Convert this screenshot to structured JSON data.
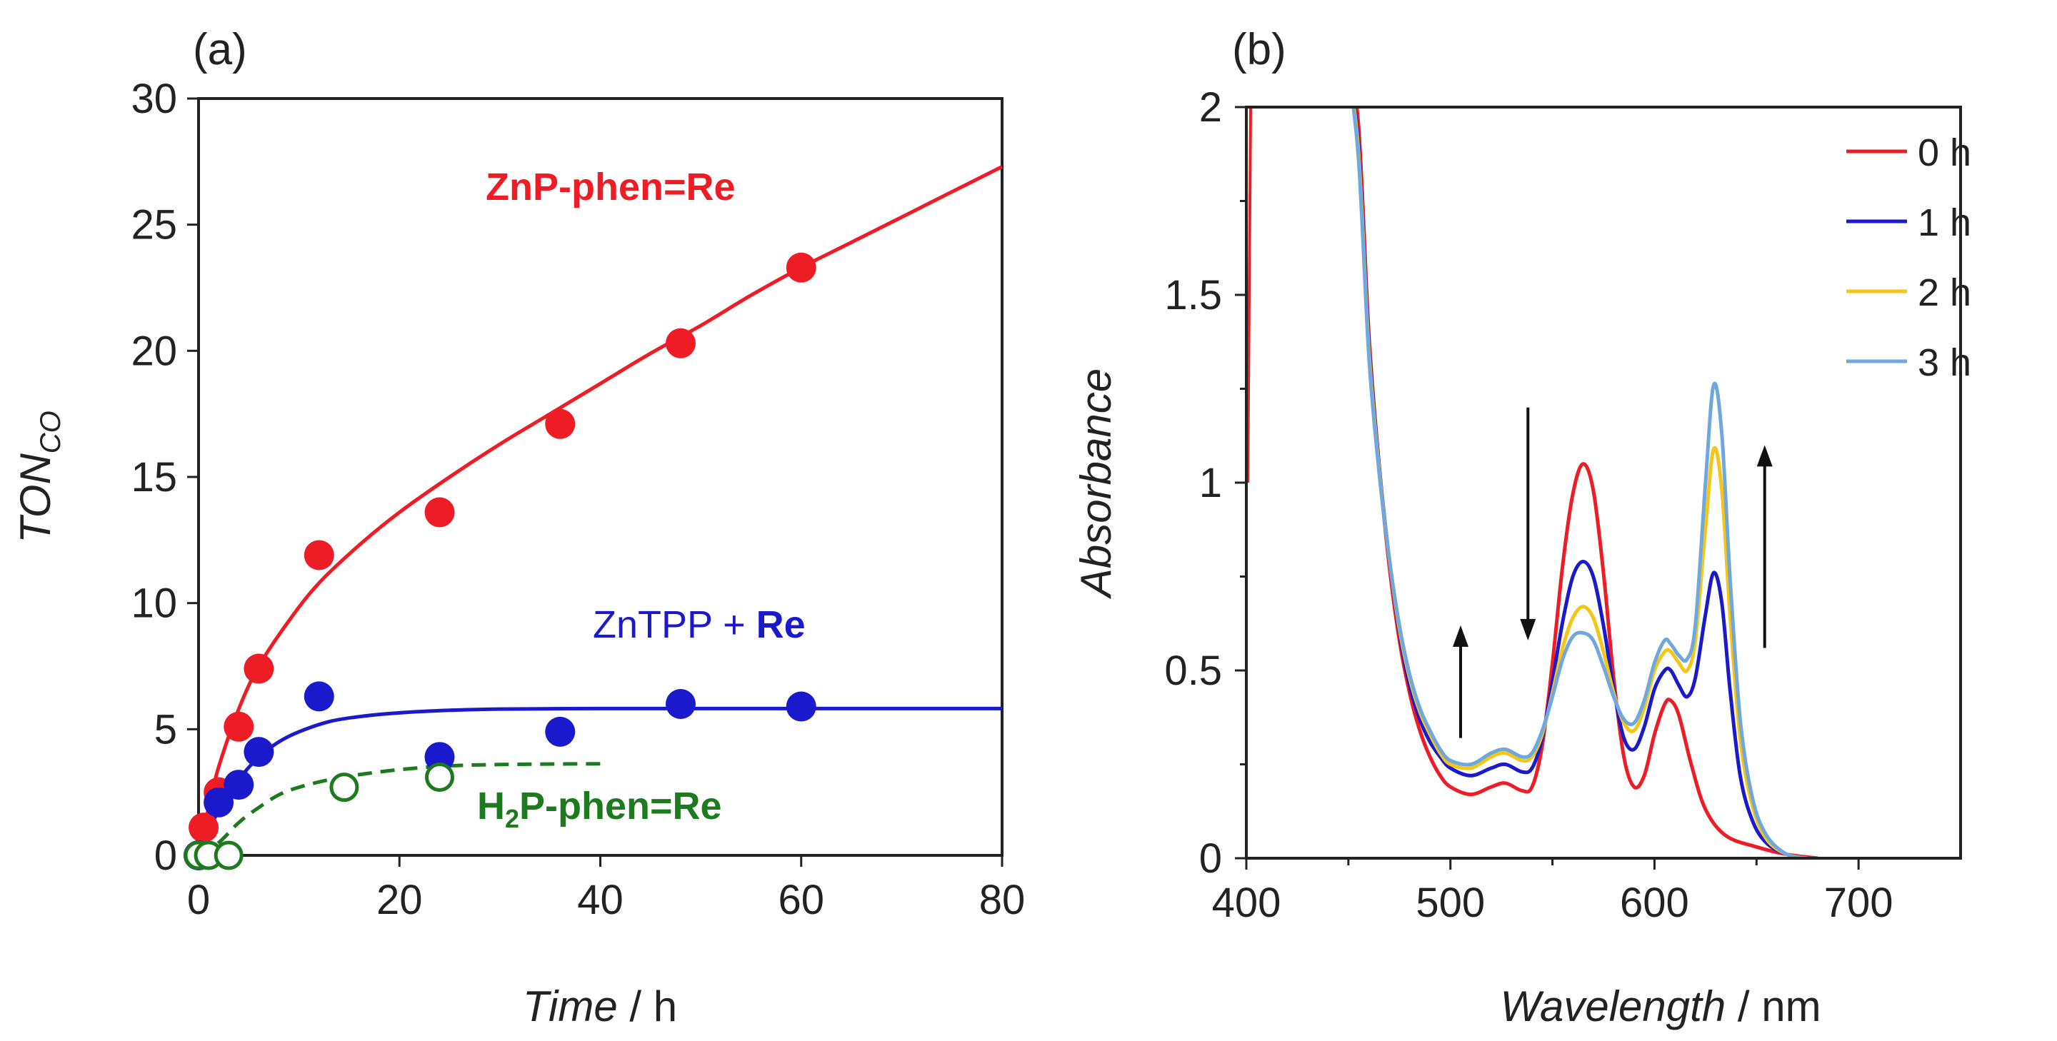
{
  "chart_data": [
    {
      "panel": "(a)",
      "type": "scatter",
      "xlabel": "Time",
      "xunit": " / h",
      "ylabel": "TON",
      "ylabel_sub": "CO",
      "xlim": [
        0,
        80
      ],
      "ylim": [
        0,
        30
      ],
      "xticks": [
        0,
        20,
        40,
        60,
        80
      ],
      "yticks": [
        0,
        5,
        10,
        15,
        20,
        25,
        30
      ],
      "series": [
        {
          "name": "ZnP-phen=Re",
          "name_parts": [
            "ZnP-phen=Re"
          ],
          "color": "#ee1c25",
          "marker": "filled-circle",
          "fit": "solid",
          "points": [
            [
              0,
              0
            ],
            [
              0.5,
              1.1
            ],
            [
              2,
              2.5
            ],
            [
              4,
              5.1
            ],
            [
              6,
              7.4
            ],
            [
              12,
              11.9
            ],
            [
              24,
              13.6
            ],
            [
              36,
              17.1
            ],
            [
              48,
              20.3
            ],
            [
              60,
              23.3
            ]
          ],
          "fit_curve": [
            [
              0,
              0
            ],
            [
              1,
              1.9
            ],
            [
              2,
              3.5
            ],
            [
              4,
              5.8
            ],
            [
              6,
              7.5
            ],
            [
              9,
              9.3
            ],
            [
              12,
              10.8
            ],
            [
              16,
              12.3
            ],
            [
              20,
              13.6
            ],
            [
              25,
              15.0
            ],
            [
              30,
              16.3
            ],
            [
              35,
              17.5
            ],
            [
              40,
              18.7
            ],
            [
              45,
              19.9
            ],
            [
              50,
              21.0
            ],
            [
              55,
              22.2
            ],
            [
              60,
              23.3
            ],
            [
              65,
              24.3
            ],
            [
              70,
              25.3
            ],
            [
              75,
              26.3
            ],
            [
              80,
              27.3
            ]
          ]
        },
        {
          "name": "ZnTPP + Re",
          "name_parts": [
            "ZnTPP + ",
            "Re"
          ],
          "color": "#1a1acc",
          "marker": "filled-circle",
          "fit": "solid",
          "points": [
            [
              0,
              0
            ],
            [
              2,
              2.1
            ],
            [
              4,
              2.8
            ],
            [
              6,
              4.1
            ],
            [
              12,
              6.3
            ],
            [
              24,
              3.9
            ],
            [
              36,
              4.9
            ],
            [
              48,
              6.0
            ],
            [
              60,
              5.9
            ]
          ],
          "fit_curve": [
            [
              0,
              0
            ],
            [
              2,
              1.8
            ],
            [
              4,
              3.0
            ],
            [
              6,
              3.9
            ],
            [
              8,
              4.5
            ],
            [
              10,
              4.9
            ],
            [
              13,
              5.3
            ],
            [
              16,
              5.5
            ],
            [
              20,
              5.65
            ],
            [
              25,
              5.75
            ],
            [
              30,
              5.8
            ],
            [
              40,
              5.82
            ],
            [
              50,
              5.82
            ],
            [
              60,
              5.82
            ],
            [
              70,
              5.82
            ],
            [
              80,
              5.82
            ]
          ]
        },
        {
          "name": "H2P-phen=Re",
          "name_parts": [
            "H",
            "2",
            "P-phen=Re"
          ],
          "color": "#1e7a1e",
          "marker": "open-circle",
          "fit": "dashed",
          "points": [
            [
              0,
              0
            ],
            [
              1,
              0
            ],
            [
              3,
              0
            ],
            [
              14.5,
              2.7
            ],
            [
              24,
              3.1
            ]
          ],
          "fit_curve": [
            [
              0,
              0
            ],
            [
              2,
              0.5
            ],
            [
              4,
              1.3
            ],
            [
              6,
              1.9
            ],
            [
              8,
              2.4
            ],
            [
              10,
              2.7
            ],
            [
              13,
              3.0
            ],
            [
              16,
              3.2
            ],
            [
              20,
              3.4
            ],
            [
              25,
              3.55
            ],
            [
              30,
              3.6
            ],
            [
              35,
              3.62
            ],
            [
              40,
              3.63
            ]
          ]
        }
      ]
    },
    {
      "panel": "(b)",
      "type": "line",
      "xlabel": "Wavelength",
      "xunit": " / nm",
      "ylabel": "Absorbance",
      "xlim": [
        400,
        750
      ],
      "ylim": [
        0,
        2
      ],
      "xticks": [
        400,
        500,
        600,
        700
      ],
      "xticks_minor": [
        450,
        550,
        650
      ],
      "yticks": [
        0,
        0.5,
        1,
        1.5,
        2
      ],
      "ytick_labels": [
        "0",
        "0.5",
        "1",
        "1.5",
        "2"
      ],
      "legend_position": "top-right",
      "annotations": [
        {
          "type": "arrow-up",
          "x": 505,
          "y_from": 0.32,
          "y_to": 0.62
        },
        {
          "type": "arrow-down",
          "x": 538,
          "y_from": 1.2,
          "y_to": 0.58
        },
        {
          "type": "arrow-up",
          "x": 654,
          "y_from": 0.56,
          "y_to": 1.1
        }
      ],
      "series": [
        {
          "name": "0 h",
          "color": "#ee1c25",
          "values": [
            [
              450,
              2.1
            ],
            [
              455,
              1.95
            ],
            [
              460,
              1.4
            ],
            [
              465,
              1.05
            ],
            [
              470,
              0.78
            ],
            [
              475,
              0.58
            ],
            [
              480,
              0.44
            ],
            [
              485,
              0.34
            ],
            [
              490,
              0.27
            ],
            [
              495,
              0.22
            ],
            [
              500,
              0.19
            ],
            [
              510,
              0.17
            ],
            [
              520,
              0.19
            ],
            [
              527,
              0.2
            ],
            [
              535,
              0.18
            ],
            [
              540,
              0.19
            ],
            [
              545,
              0.3
            ],
            [
              550,
              0.52
            ],
            [
              555,
              0.78
            ],
            [
              560,
              0.97
            ],
            [
              565,
              1.05
            ],
            [
              570,
              0.98
            ],
            [
              575,
              0.76
            ],
            [
              580,
              0.48
            ],
            [
              585,
              0.27
            ],
            [
              590,
              0.19
            ],
            [
              595,
              0.22
            ],
            [
              600,
              0.33
            ],
            [
              605,
              0.41
            ],
            [
              608,
              0.42
            ],
            [
              612,
              0.38
            ],
            [
              618,
              0.25
            ],
            [
              625,
              0.13
            ],
            [
              635,
              0.06
            ],
            [
              650,
              0.03
            ],
            [
              665,
              0.01
            ],
            [
              680,
              0.0
            ]
          ]
        },
        {
          "name": "1 h",
          "color": "#1a1acc",
          "values": [
            [
              450,
              2.1
            ],
            [
              455,
              1.9
            ],
            [
              460,
              1.38
            ],
            [
              465,
              1.05
            ],
            [
              470,
              0.8
            ],
            [
              475,
              0.6
            ],
            [
              480,
              0.46
            ],
            [
              485,
              0.37
            ],
            [
              490,
              0.31
            ],
            [
              495,
              0.27
            ],
            [
              500,
              0.24
            ],
            [
              510,
              0.22
            ],
            [
              520,
              0.24
            ],
            [
              527,
              0.25
            ],
            [
              535,
              0.23
            ],
            [
              540,
              0.24
            ],
            [
              545,
              0.32
            ],
            [
              550,
              0.47
            ],
            [
              555,
              0.63
            ],
            [
              560,
              0.75
            ],
            [
              565,
              0.79
            ],
            [
              570,
              0.75
            ],
            [
              575,
              0.62
            ],
            [
              580,
              0.45
            ],
            [
              585,
              0.32
            ],
            [
              590,
              0.29
            ],
            [
              595,
              0.35
            ],
            [
              600,
              0.45
            ],
            [
              605,
              0.5
            ],
            [
              608,
              0.5
            ],
            [
              612,
              0.46
            ],
            [
              616,
              0.43
            ],
            [
              620,
              0.48
            ],
            [
              625,
              0.65
            ],
            [
              629,
              0.76
            ],
            [
              633,
              0.68
            ],
            [
              637,
              0.45
            ],
            [
              642,
              0.22
            ],
            [
              648,
              0.1
            ],
            [
              655,
              0.04
            ],
            [
              665,
              0.01
            ],
            [
              675,
              0.0
            ]
          ]
        },
        {
          "name": "2 h",
          "color": "#f5c518",
          "values": [
            [
              450,
              2.1
            ],
            [
              455,
              1.88
            ],
            [
              460,
              1.36
            ],
            [
              465,
              1.04
            ],
            [
              470,
              0.8
            ],
            [
              475,
              0.61
            ],
            [
              480,
              0.48
            ],
            [
              485,
              0.39
            ],
            [
              490,
              0.33
            ],
            [
              495,
              0.28
            ],
            [
              500,
              0.25
            ],
            [
              510,
              0.24
            ],
            [
              520,
              0.27
            ],
            [
              527,
              0.28
            ],
            [
              535,
              0.26
            ],
            [
              540,
              0.27
            ],
            [
              545,
              0.33
            ],
            [
              550,
              0.44
            ],
            [
              555,
              0.56
            ],
            [
              560,
              0.64
            ],
            [
              565,
              0.67
            ],
            [
              570,
              0.64
            ],
            [
              575,
              0.55
            ],
            [
              580,
              0.44
            ],
            [
              585,
              0.36
            ],
            [
              590,
              0.34
            ],
            [
              595,
              0.4
            ],
            [
              600,
              0.5
            ],
            [
              605,
              0.55
            ],
            [
              608,
              0.55
            ],
            [
              612,
              0.52
            ],
            [
              616,
              0.5
            ],
            [
              620,
              0.58
            ],
            [
              625,
              0.88
            ],
            [
              629,
              1.09
            ],
            [
              633,
              0.98
            ],
            [
              637,
              0.65
            ],
            [
              642,
              0.32
            ],
            [
              648,
              0.14
            ],
            [
              655,
              0.05
            ],
            [
              665,
              0.01
            ],
            [
              675,
              0.0
            ]
          ]
        },
        {
          "name": "3 h",
          "color": "#6fa8dc",
          "values": [
            [
              450,
              2.1
            ],
            [
              455,
              1.86
            ],
            [
              460,
              1.34
            ],
            [
              465,
              1.03
            ],
            [
              470,
              0.8
            ],
            [
              475,
              0.62
            ],
            [
              480,
              0.49
            ],
            [
              485,
              0.4
            ],
            [
              490,
              0.34
            ],
            [
              495,
              0.29
            ],
            [
              500,
              0.26
            ],
            [
              510,
              0.25
            ],
            [
              520,
              0.28
            ],
            [
              527,
              0.29
            ],
            [
              535,
              0.27
            ],
            [
              540,
              0.28
            ],
            [
              545,
              0.34
            ],
            [
              550,
              0.43
            ],
            [
              555,
              0.53
            ],
            [
              560,
              0.59
            ],
            [
              565,
              0.6
            ],
            [
              570,
              0.58
            ],
            [
              575,
              0.51
            ],
            [
              580,
              0.43
            ],
            [
              585,
              0.37
            ],
            [
              590,
              0.36
            ],
            [
              595,
              0.42
            ],
            [
              600,
              0.52
            ],
            [
              605,
              0.58
            ],
            [
              608,
              0.57
            ],
            [
              612,
              0.54
            ],
            [
              616,
              0.53
            ],
            [
              620,
              0.62
            ],
            [
              625,
              1.0
            ],
            [
              629,
              1.26
            ],
            [
              633,
              1.13
            ],
            [
              637,
              0.75
            ],
            [
              642,
              0.37
            ],
            [
              648,
              0.16
            ],
            [
              655,
              0.06
            ],
            [
              665,
              0.01
            ],
            [
              675,
              0.0
            ]
          ]
        }
      ]
    }
  ]
}
